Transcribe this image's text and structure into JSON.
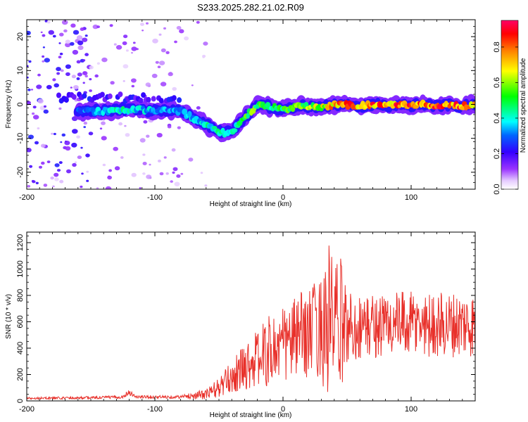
{
  "title": "S233.2025.282.21.02.R09",
  "colors": {
    "snr_line": "#e8302a",
    "spectrum_background": "#ffffff",
    "frame": "#000000"
  },
  "chart_data": [
    {
      "type": "heatmap",
      "name": "spectrogram",
      "xlabel": "Height of straight line (km)",
      "ylabel": "Frequency (Hz)",
      "xlim": [
        -200,
        150
      ],
      "ylim": [
        -25,
        25
      ],
      "x_ticks": [
        -200,
        -100,
        0,
        100
      ],
      "y_ticks": [
        -20,
        -10,
        0,
        10,
        20
      ],
      "colorbar": {
        "label": "Normalized spectral amplitude",
        "range": [
          0,
          0.95
        ],
        "ticks": [
          "0.0",
          "0.2",
          "0.4",
          "0.6",
          "0.8"
        ],
        "colormap": [
          "#ffffff",
          "#e6ccff",
          "#9933ff",
          "#3300ff",
          "#00ffff",
          "#00ff00",
          "#ffff00",
          "#ff8000",
          "#ff0000",
          "#ff0066"
        ]
      },
      "ridge": {
        "x": [
          -160,
          -150,
          -140,
          -130,
          -120,
          -110,
          -100,
          -90,
          -80,
          -70,
          -60,
          -50,
          -45,
          -40,
          -35,
          -30,
          -25,
          -20,
          -15,
          -10,
          -5,
          0,
          10,
          20,
          30,
          40,
          50,
          60,
          70,
          80,
          90,
          100,
          110,
          120,
          130,
          140,
          150
        ],
        "frequency": [
          -2,
          -2,
          -2,
          -1.5,
          -1.5,
          -1.5,
          -2,
          -1.5,
          -2,
          -4,
          -6,
          -8,
          -8.5,
          -8,
          -6,
          -4,
          -2,
          0,
          0,
          -1,
          -1,
          -1.5,
          -0.5,
          -0.5,
          -1,
          0,
          0,
          -0.5,
          0,
          -0.5,
          0,
          -0.5,
          0,
          -0.5,
          0,
          -0.5,
          0
        ],
        "amplitude": [
          0.35,
          0.35,
          0.4,
          0.45,
          0.45,
          0.4,
          0.4,
          0.35,
          0.35,
          0.4,
          0.45,
          0.5,
          0.5,
          0.45,
          0.5,
          0.55,
          0.6,
          0.6,
          0.6,
          0.55,
          0.55,
          0.55,
          0.6,
          0.65,
          0.7,
          0.85,
          0.9,
          0.85,
          0.9,
          0.85,
          0.9,
          0.9,
          0.9,
          0.9,
          0.85,
          0.9,
          0.85
        ]
      }
    },
    {
      "type": "line",
      "name": "snr",
      "xlabel": "Height of straight line (km)",
      "ylabel": "SNR (10 * v/v)",
      "xlim": [
        -200,
        150
      ],
      "ylim": [
        0,
        1280
      ],
      "x_ticks": [
        -200,
        -100,
        0,
        100
      ],
      "y_ticks": [
        0,
        200,
        400,
        600,
        800,
        1000,
        1200
      ],
      "envelope": {
        "x": [
          -200,
          -150,
          -125,
          -120,
          -115,
          -80,
          -60,
          -50,
          -40,
          -30,
          -20,
          -10,
          0,
          10,
          20,
          30,
          35,
          40,
          45,
          50,
          60,
          70,
          80,
          90,
          100,
          110,
          120,
          130,
          140,
          150
        ],
        "mean": [
          20,
          25,
          30,
          70,
          30,
          30,
          50,
          100,
          180,
          260,
          320,
          380,
          420,
          480,
          520,
          560,
          600,
          600,
          580,
          560,
          560,
          570,
          580,
          580,
          580,
          580,
          580,
          580,
          580,
          580
        ],
        "amplitude": [
          8,
          10,
          12,
          25,
          12,
          12,
          40,
          80,
          120,
          180,
          220,
          280,
          300,
          320,
          340,
          400,
          650,
          450,
          500,
          300,
          250,
          250,
          250,
          250,
          250,
          250,
          250,
          250,
          250,
          250
        ]
      }
    }
  ]
}
